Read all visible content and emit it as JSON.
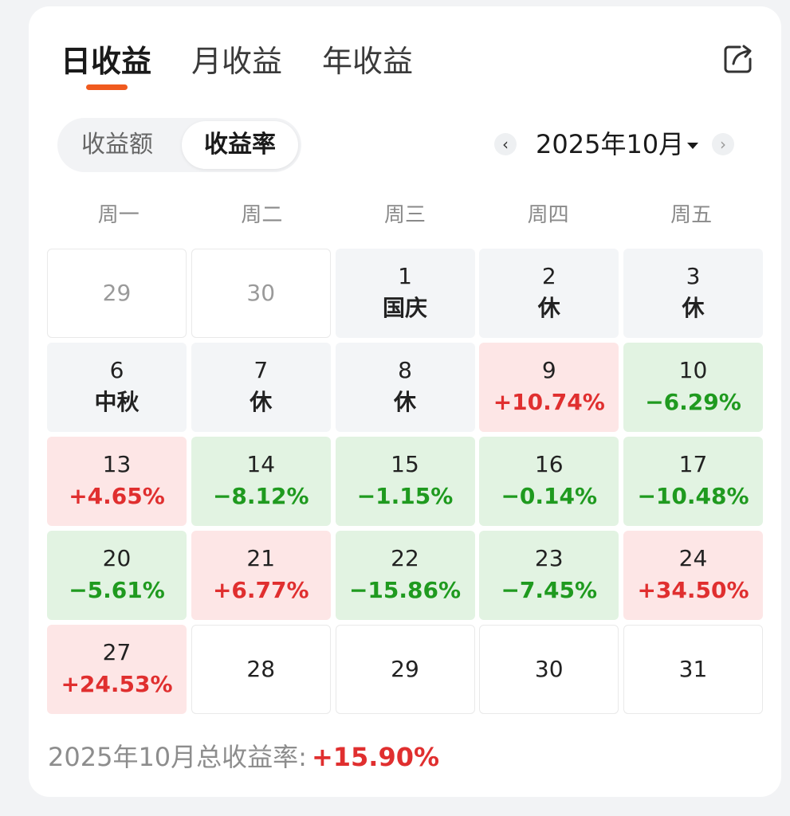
{
  "tabs": [
    {
      "label": "日收益",
      "active": true
    },
    {
      "label": "月收益",
      "active": false
    },
    {
      "label": "年收益",
      "active": false
    }
  ],
  "toggle": {
    "amount_label": "收益额",
    "rate_label": "收益率",
    "selected": "收益率"
  },
  "month_nav": {
    "prev": "‹",
    "label": "2025年10月",
    "next": "›"
  },
  "weekdays": [
    "周一",
    "周二",
    "周三",
    "周四",
    "周五"
  ],
  "calendar": [
    [
      {
        "day": "29",
        "sub": "",
        "kind": "empty outside"
      },
      {
        "day": "30",
        "sub": "",
        "kind": "empty outside"
      },
      {
        "day": "1",
        "sub": "国庆",
        "kind": "holiday"
      },
      {
        "day": "2",
        "sub": "休",
        "kind": "holiday"
      },
      {
        "day": "3",
        "sub": "休",
        "kind": "holiday"
      }
    ],
    [
      {
        "day": "6",
        "sub": "中秋",
        "kind": "holiday"
      },
      {
        "day": "7",
        "sub": "休",
        "kind": "holiday"
      },
      {
        "day": "8",
        "sub": "休",
        "kind": "holiday"
      },
      {
        "day": "9",
        "sub": "+10.74%",
        "kind": "up"
      },
      {
        "day": "10",
        "sub": "−6.29%",
        "kind": "down"
      }
    ],
    [
      {
        "day": "13",
        "sub": "+4.65%",
        "kind": "up"
      },
      {
        "day": "14",
        "sub": "−8.12%",
        "kind": "down"
      },
      {
        "day": "15",
        "sub": "−1.15%",
        "kind": "down"
      },
      {
        "day": "16",
        "sub": "−0.14%",
        "kind": "down"
      },
      {
        "day": "17",
        "sub": "−10.48%",
        "kind": "down"
      }
    ],
    [
      {
        "day": "20",
        "sub": "−5.61%",
        "kind": "down"
      },
      {
        "day": "21",
        "sub": "+6.77%",
        "kind": "up"
      },
      {
        "day": "22",
        "sub": "−15.86%",
        "kind": "down"
      },
      {
        "day": "23",
        "sub": "−7.45%",
        "kind": "down"
      },
      {
        "day": "24",
        "sub": "+34.50%",
        "kind": "up"
      }
    ],
    [
      {
        "day": "27",
        "sub": "+24.53%",
        "kind": "up"
      },
      {
        "day": "28",
        "sub": "",
        "kind": "empty"
      },
      {
        "day": "29",
        "sub": "",
        "kind": "empty"
      },
      {
        "day": "30",
        "sub": "",
        "kind": "empty"
      },
      {
        "day": "31",
        "sub": "",
        "kind": "empty"
      }
    ]
  ],
  "summary": {
    "label": "2025年10月总收益率:",
    "value": "+15.90%"
  },
  "colors": {
    "accent": "#f05a1e",
    "up": "#e02f2f",
    "down": "#1f9a1f",
    "up_bg": "#fde6e6",
    "down_bg": "#e2f3e2",
    "holiday_bg": "#f3f5f7"
  },
  "icons": {
    "share": "share-icon",
    "caret": "caret-down-icon"
  }
}
